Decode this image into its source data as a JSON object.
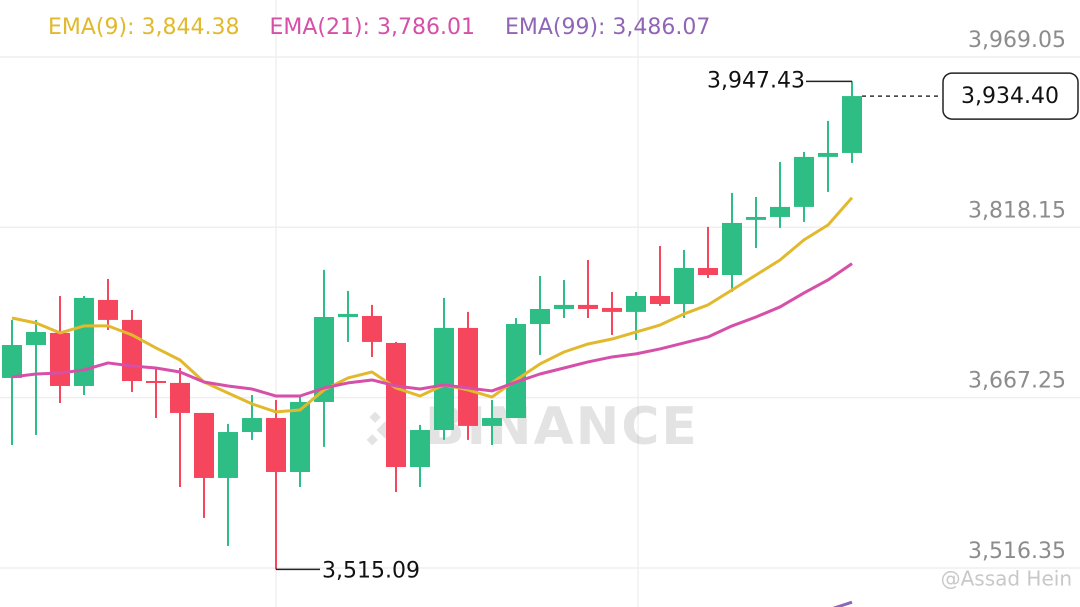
{
  "chart_data": {
    "type": "candlestick",
    "categories": [
      null,
      null,
      null,
      null,
      null,
      null,
      null,
      null,
      null,
      null,
      null,
      null,
      null,
      null,
      null,
      null,
      null,
      null,
      null,
      null,
      null,
      null,
      null,
      null,
      null,
      null,
      null,
      null,
      null,
      null,
      null,
      null,
      null,
      null,
      null,
      null
    ],
    "open": [
      3684.7,
      3713.9,
      3724.6,
      3677.6,
      3753.8,
      3736.1,
      3682.0,
      3680.3,
      3653.7,
      3596.1,
      3636.8,
      3649.2,
      3601.4,
      3663.4,
      3738.7,
      3739.6,
      3715.7,
      3605.8,
      3638.6,
      3729.0,
      3642.2,
      3649.2,
      3732.5,
      3745.8,
      3749.4,
      3746.7,
      3743.2,
      3757.3,
      3750.2,
      3782.1,
      3775.9,
      3824.7,
      3827.3,
      3836.2,
      3880.5,
      3884.0
    ],
    "high": [
      3736.1,
      3736.1,
      3757.3,
      3757.3,
      3772.4,
      3744.9,
      3693.5,
      3693.5,
      3653.7,
      3644.0,
      3669.6,
      3665.2,
      3669.6,
      3780.4,
      3761.8,
      3749.4,
      3716.6,
      3643.1,
      3755.6,
      3743.2,
      3665.2,
      3737.8,
      3775.0,
      3771.5,
      3789.2,
      3760.9,
      3760.9,
      3801.6,
      3798.1,
      3818.5,
      3848.6,
      3845.0,
      3876.0,
      3884.9,
      3912.4,
      3947.43
    ],
    "low": [
      3625.3,
      3634.2,
      3662.5,
      3669.6,
      3727.2,
      3672.3,
      3649.2,
      3588.1,
      3560.7,
      3535.8,
      3629.8,
      3515.09,
      3588.1,
      3623.6,
      3716.6,
      3703.3,
      3583.7,
      3588.1,
      3629.8,
      3629.8,
      3625.3,
      3649.2,
      3705.1,
      3737.8,
      3737.8,
      3722.8,
      3718.4,
      3748.5,
      3737.8,
      3773.3,
      3760.9,
      3799.8,
      3817.6,
      3822.9,
      3849.5,
      3875.2
    ],
    "close": [
      3713.9,
      3725.4,
      3677.6,
      3755.6,
      3736.1,
      3682.0,
      3680.3,
      3653.7,
      3596.1,
      3636.8,
      3649.2,
      3601.4,
      3663.4,
      3738.7,
      3741.4,
      3716.6,
      3605.8,
      3638.6,
      3729.0,
      3642.2,
      3649.2,
      3732.5,
      3745.8,
      3749.4,
      3745.8,
      3743.2,
      3757.3,
      3750.2,
      3782.1,
      3775.9,
      3822.0,
      3827.3,
      3836.2,
      3880.5,
      3884.0,
      3934.4
    ],
    "up_color": "#2ebd85",
    "down_color": "#f6465d",
    "series": [
      {
        "name": "EMA(9): 3,844.38",
        "color": "#e2b92c",
        "values": [
          3737.8,
          3733.4,
          3724.6,
          3730.8,
          3730.8,
          3722.8,
          3711.3,
          3700.6,
          3681.1,
          3671.4,
          3661.7,
          3654.6,
          3656.3,
          3674.1,
          3684.7,
          3690.0,
          3675.8,
          3668.7,
          3678.5,
          3674.1,
          3667.8,
          3682.9,
          3697.1,
          3707.7,
          3714.8,
          3719.2,
          3725.4,
          3731.6,
          3741.4,
          3749.4,
          3762.6,
          3775.9,
          3789.2,
          3807.0,
          3820.2,
          3844.38
        ]
      },
      {
        "name": "EMA(21): 3,786.01",
        "color": "#d64fa8",
        "values": [
          3685.6,
          3688.2,
          3689.1,
          3691.8,
          3698.0,
          3695.3,
          3693.5,
          3690.0,
          3681.1,
          3677.6,
          3674.9,
          3668.7,
          3668.7,
          3675.8,
          3680.3,
          3682.9,
          3677.6,
          3674.9,
          3678.5,
          3675.8,
          3673.2,
          3681.1,
          3688.2,
          3693.5,
          3698.9,
          3703.3,
          3706.0,
          3710.4,
          3715.7,
          3721.0,
          3730.8,
          3738.7,
          3747.6,
          3760.0,
          3771.5,
          3786.01
        ]
      },
      {
        "name": "EMA(99): 3,486.07",
        "color": "#9165b5",
        "values": [
          null,
          null,
          null,
          null,
          null,
          null,
          null,
          null,
          null,
          null,
          null,
          null,
          null,
          null,
          null,
          null,
          null,
          null,
          null,
          null,
          null,
          null,
          null,
          null,
          null,
          null,
          null,
          null,
          null,
          null,
          null,
          null,
          null,
          null,
          3479.1,
          3486.07
        ]
      }
    ],
    "ylim": [
      3481.8,
      4019.5
    ],
    "yticks": [
      {
        "value": 3969.05,
        "label": "3,969.05"
      },
      {
        "value": 3818.15,
        "label": "3,818.15"
      },
      {
        "value": 3667.25,
        "label": "3,667.25"
      },
      {
        "value": 3516.35,
        "label": "3,516.35"
      }
    ],
    "grid": true,
    "annotations": {
      "high": {
        "index": 35,
        "value": 3947.43,
        "label": "3,947.43"
      },
      "low": {
        "index": 11,
        "value": 3515.09,
        "label": "3,515.09"
      },
      "last": {
        "value": 3934.4,
        "label": "3,934.40"
      }
    },
    "watermark": "BINANCE",
    "credit": "@Assad Hein"
  }
}
